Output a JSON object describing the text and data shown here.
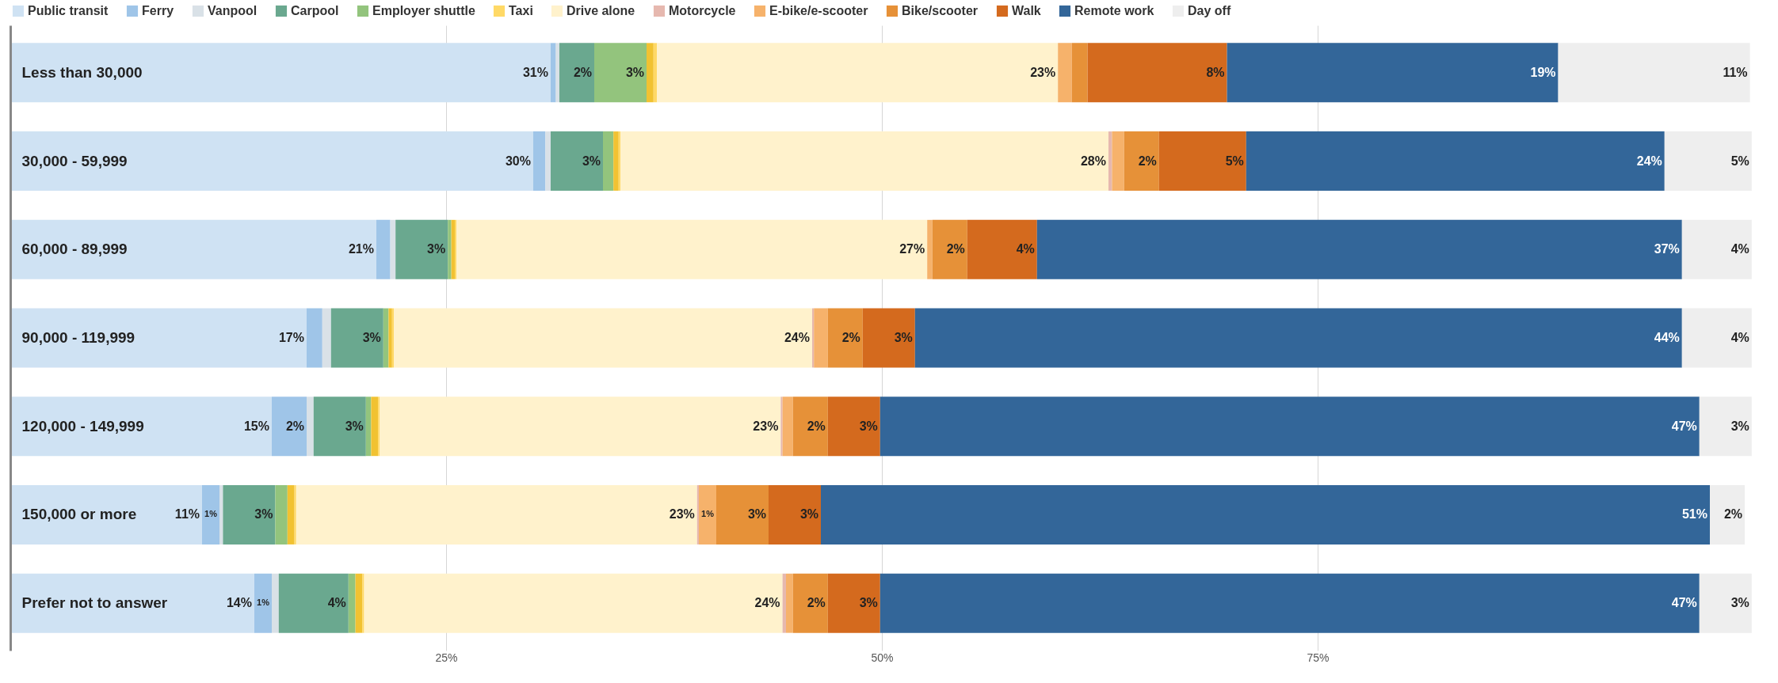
{
  "chart_data": {
    "type": "bar",
    "orientation": "horizontal",
    "stacked": true,
    "legend": "top",
    "grid": "x",
    "categories": [
      "Less than 30,000",
      "30,000 - 59,999",
      "60,000 - 89,999",
      "90,000 - 119,999",
      "120,000 - 149,999",
      "150,000 or more",
      "Prefer not to answer"
    ],
    "xlim": [
      0,
      100
    ],
    "xticks": [
      {
        "value": 25,
        "label": "25%"
      },
      {
        "value": 50,
        "label": "50%"
      },
      {
        "value": 75,
        "label": "75%"
      }
    ],
    "series": [
      {
        "name": "Public transit",
        "color": "#cfe2f3",
        "values": [
          31,
          30,
          21,
          17,
          15,
          11,
          14
        ],
        "value_labels": [
          "31%",
          "30%",
          "21%",
          "17%",
          "15%",
          "11%",
          "14%"
        ]
      },
      {
        "name": "Ferry",
        "color": "#9fc5e8",
        "values": [
          0.3,
          0.7,
          0.8,
          0.9,
          2,
          1,
          1
        ],
        "value_labels": [
          null,
          null,
          null,
          null,
          "2%",
          "1%",
          "1%"
        ]
      },
      {
        "name": "Vanpool",
        "color": "#d9e1e7",
        "values": [
          0.2,
          0.3,
          0.3,
          0.5,
          0.4,
          0.2,
          0.4
        ]
      },
      {
        "name": "Carpool",
        "color": "#6aa88f",
        "values": [
          2,
          3,
          3,
          3,
          3,
          3,
          4
        ],
        "value_labels": [
          "2%",
          "3%",
          "3%",
          "3%",
          "3%",
          "3%",
          "4%"
        ]
      },
      {
        "name": "Employer shuttle",
        "color": "#93c47d",
        "values": [
          3,
          0.6,
          0.2,
          0.3,
          0.3,
          0.7,
          0.4
        ],
        "value_labels": [
          "3%",
          null,
          null,
          null,
          null,
          null,
          null
        ]
      },
      {
        "color": "#f1c232",
        "values": [
          0.4,
          0.3,
          0.2,
          0.2,
          0.4,
          0.4,
          0.4
        ]
      },
      {
        "name": "Taxi",
        "color": "#ffd966",
        "values": [
          0.2,
          0.1,
          0.1,
          0.1,
          0.1,
          0.1,
          0.1
        ]
      },
      {
        "name": "Drive alone",
        "color": "#fff2cc",
        "values": [
          23,
          28,
          27,
          24,
          23,
          23,
          24
        ],
        "value_labels": [
          "23%",
          "28%",
          "27%",
          "24%",
          "23%",
          "23%",
          "24%"
        ]
      },
      {
        "name": "Motorcycle",
        "color": "#e6b8af",
        "values": [
          0,
          0.2,
          0,
          0.1,
          0.1,
          0.1,
          0.2
        ]
      },
      {
        "name": "E-bike/e-scooter",
        "color": "#f6b26b",
        "values": [
          0.8,
          0.7,
          0.3,
          0.8,
          0.6,
          1,
          0.4
        ],
        "value_labels": [
          null,
          null,
          null,
          null,
          null,
          "1%",
          null
        ]
      },
      {
        "name": "Bike/scooter",
        "color": "#e69138",
        "values": [
          0.9,
          2,
          2,
          2,
          2,
          3,
          2
        ],
        "value_labels": [
          null,
          "2%",
          "2%",
          "2%",
          "2%",
          "3%",
          "2%"
        ]
      },
      {
        "name": "Walk",
        "color": "#d46a1e",
        "values": [
          8,
          5,
          4,
          3,
          3,
          3,
          3
        ],
        "value_labels": [
          "8%",
          "5%",
          "4%",
          "3%",
          "3%",
          "3%",
          "3%"
        ]
      },
      {
        "name": "Remote work",
        "color": "#336699",
        "values": [
          19,
          24,
          37,
          44,
          47,
          51,
          47
        ],
        "value_labels": [
          "19%",
          "24%",
          "37%",
          "44%",
          "47%",
          "51%",
          "47%"
        ]
      },
      {
        "name": "Day off",
        "color": "#eeeeee",
        "values": [
          11,
          5,
          4,
          4,
          3,
          2,
          3
        ],
        "value_labels": [
          "11%",
          "5%",
          "4%",
          "4%",
          "3%",
          "2%",
          "3%"
        ]
      }
    ]
  }
}
